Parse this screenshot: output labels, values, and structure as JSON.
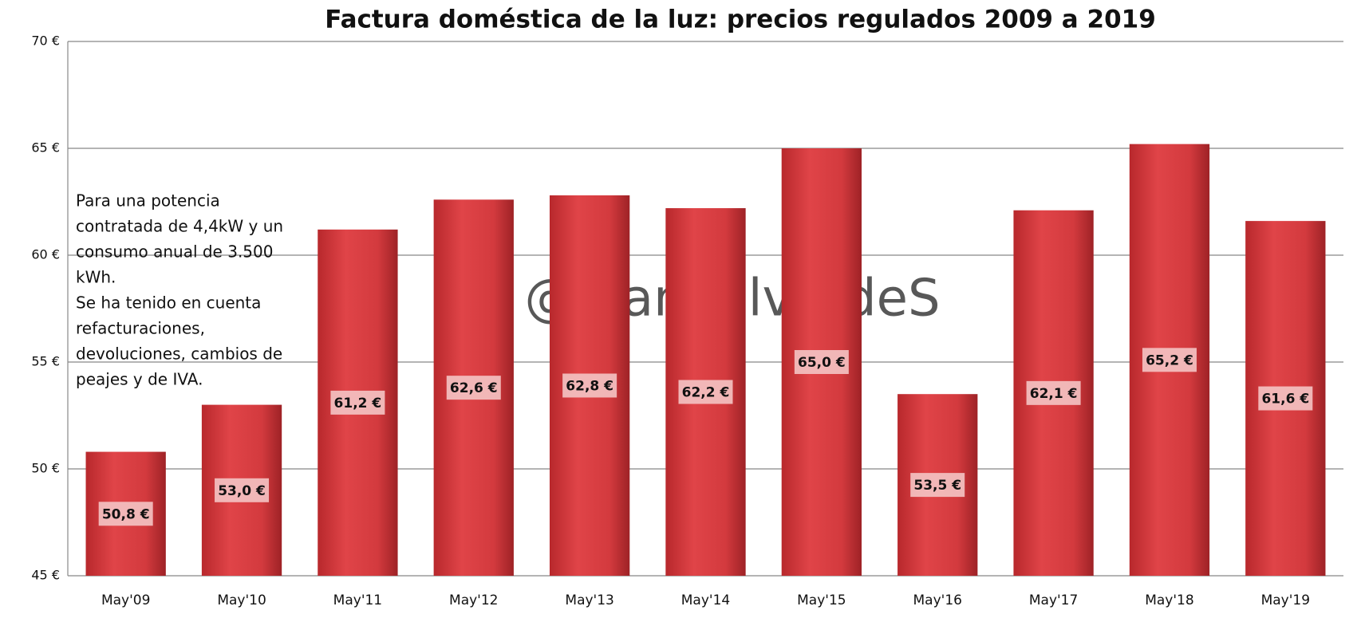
{
  "chart_data": {
    "type": "bar",
    "title": "Factura doméstica de la luz: precios regulados 2009 a 2019",
    "categories": [
      "May'09",
      "May'10",
      "May'11",
      "May'12",
      "May'13",
      "May'14",
      "May'15",
      "May'16",
      "May'17",
      "May'18",
      "May'19"
    ],
    "values": [
      50.8,
      53.0,
      61.2,
      62.6,
      62.8,
      62.2,
      65.0,
      53.5,
      62.1,
      65.2,
      61.6
    ],
    "value_labels": [
      "50,8 €",
      "53,0 €",
      "61,2 €",
      "62,6 €",
      "62,8 €",
      "62,2 €",
      "65,0 €",
      "53,5 €",
      "62,1 €",
      "65,2 €",
      "61,6 €"
    ],
    "color": "#d63a3e",
    "ylim": [
      45,
      70
    ],
    "yticks": [
      {
        "value": 45,
        "label": "45 €"
      },
      {
        "value": 50,
        "label": "50 €"
      },
      {
        "value": 55,
        "label": "55 €"
      },
      {
        "value": 60,
        "label": "60 €"
      },
      {
        "value": 65,
        "label": "65 €"
      },
      {
        "value": 70,
        "label": "70 €"
      }
    ],
    "grid": true,
    "annotation": [
      "Para una potencia",
      "contratada de 4,4kW y un",
      "consumo anual de 3.500",
      "kWh.",
      "Se ha tenido en cuenta",
      "refacturaciones,",
      "devoluciones, cambios de",
      "peajes y de IVA."
    ],
    "watermark": "@FranValverdeS"
  }
}
